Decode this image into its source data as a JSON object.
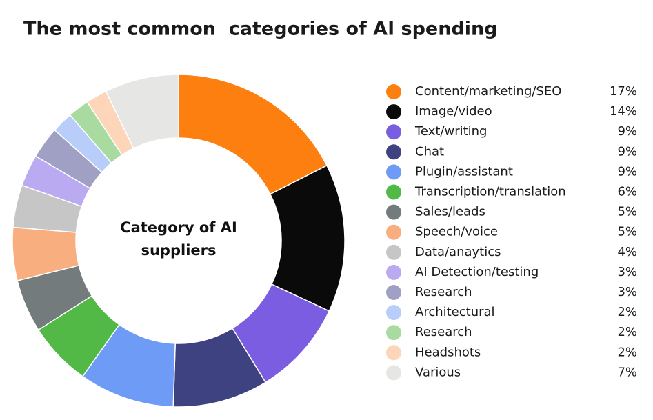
{
  "chart_data": {
    "type": "donut",
    "title": "The most common  categories of AI spending",
    "center_label": "Category of AI suppliers",
    "categories": [
      "Content/marketing/SEO",
      "Image/video",
      "Text/writing",
      "Chat",
      "Plugin/assistant",
      "Transcription/translation",
      "Sales/leads",
      "Speech/voice",
      "Data/anaytics",
      "AI Detection/testing",
      "Research",
      "Architectural",
      "Research",
      "Headshots",
      "Various"
    ],
    "values": [
      17,
      14,
      9,
      9,
      9,
      6,
      5,
      5,
      4,
      3,
      3,
      2,
      2,
      2,
      7
    ],
    "value_labels": [
      "17%",
      "14%",
      "9%",
      "9%",
      "9%",
      "6%",
      "5%",
      "5%",
      "4%",
      "3%",
      "3%",
      "2%",
      "2%",
      "2%",
      "7%"
    ],
    "colors": [
      "#fc7f0f",
      "#0a0a0a",
      "#7a5de0",
      "#3f4280",
      "#6e9bf6",
      "#52b947",
      "#737b7c",
      "#f9ae7f",
      "#c6c6c6",
      "#baaaf1",
      "#a0a0c4",
      "#b9cdfa",
      "#a9dba1",
      "#fdd6b9",
      "#e6e6e5"
    ],
    "legend": "right"
  }
}
